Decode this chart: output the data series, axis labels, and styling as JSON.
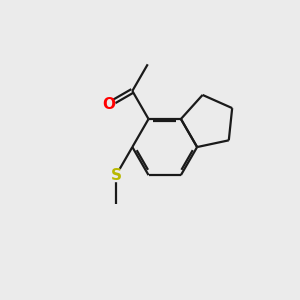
{
  "background_color": "#ebebeb",
  "bond_color": "#1a1a1a",
  "oxygen_color": "#ff0000",
  "sulfur_color": "#b8b800",
  "line_width": 1.6,
  "figsize": [
    3.0,
    3.0
  ],
  "dpi": 100,
  "bx": 5.5,
  "by": 5.1,
  "r": 1.1
}
